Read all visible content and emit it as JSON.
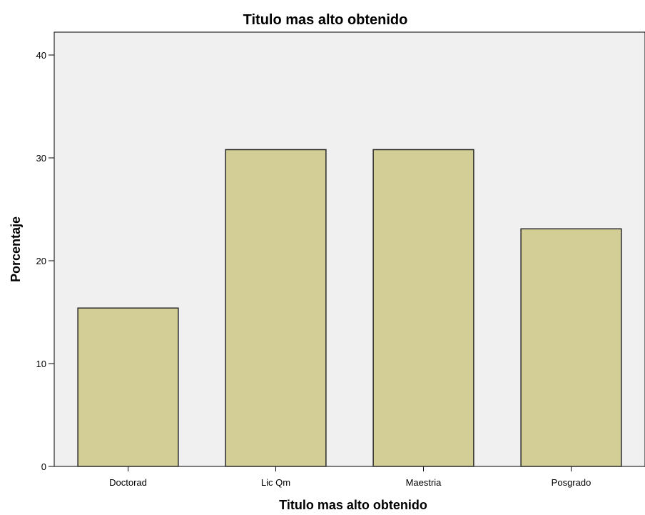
{
  "chart_data": {
    "type": "bar",
    "title": "Titulo mas alto obtenido",
    "xlabel": "Titulo mas alto obtenido",
    "ylabel": "Porcentaje",
    "categories": [
      "Doctorad",
      "Lic Qm",
      "Maestria",
      "Posgrado"
    ],
    "values": [
      15.4,
      30.8,
      30.8,
      23.1
    ],
    "ylim": [
      0,
      40
    ],
    "yticks": [
      "0",
      "10",
      "20",
      "30",
      "40"
    ],
    "grid": false,
    "legend": "none",
    "colors": {
      "bar_fill": "#d3cd96",
      "bar_stroke": "#2a2a2a",
      "plot_background": "#f0f0f0",
      "axis": "#000000"
    }
  }
}
